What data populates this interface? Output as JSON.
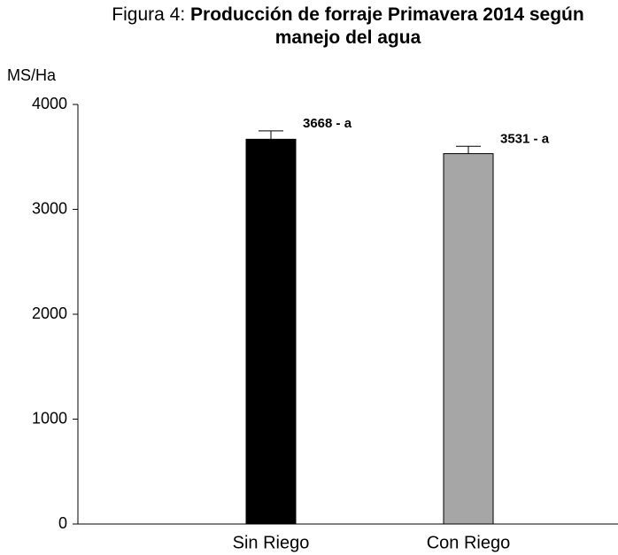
{
  "chart_data": {
    "type": "bar",
    "title_prefix": "Figura 4:",
    "title": "Producción de forraje Primavera 2014 según manejo del agua",
    "y_label": "MS/Ha",
    "categories": [
      "Sin Riego",
      "Con Riego"
    ],
    "values": [
      3668,
      3531
    ],
    "errors": [
      80,
      70
    ],
    "value_labels": [
      "3668 - a",
      "3531 - a"
    ],
    "colors": [
      "#000000",
      "#a6a6a6"
    ],
    "ylim": [
      0,
      4000
    ],
    "yticks": [
      0,
      1000,
      2000,
      3000,
      4000
    ],
    "grid": false
  }
}
